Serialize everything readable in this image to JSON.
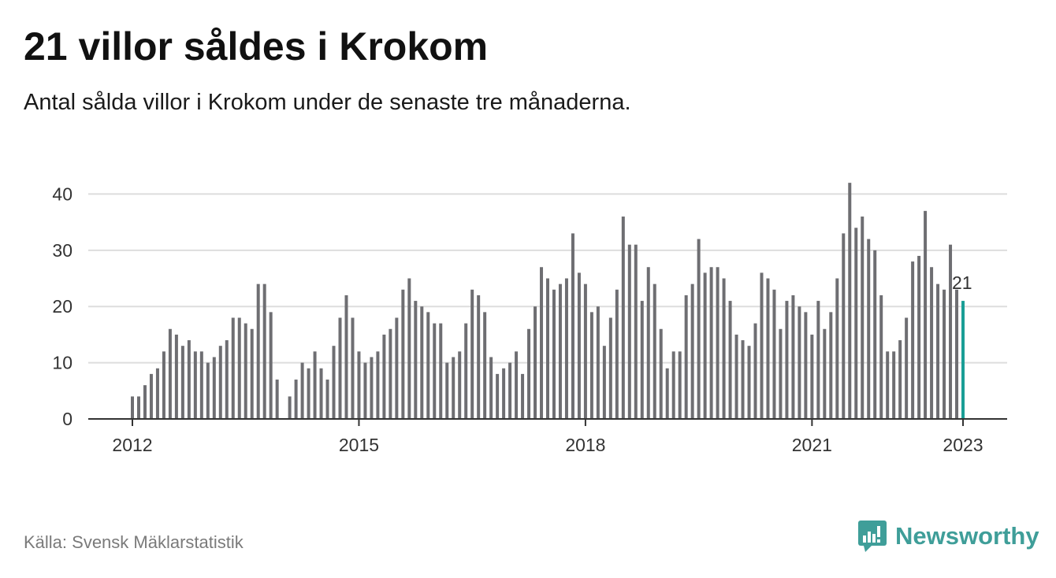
{
  "title": "21 villor såldes i Krokom",
  "subtitle": "Antal sålda villor i Krokom under de senaste tre månaderna.",
  "source": "Källa: Svensk Mäklarstatistik",
  "brand": {
    "name": "Newsworthy",
    "icon": "newsworthy-logo-icon",
    "color": "#3f9e99"
  },
  "colors": {
    "bar": "#6e6e72",
    "highlight": "#1a9e96",
    "grid": "#dddddd",
    "axis": "#333333"
  },
  "chart_data": {
    "type": "bar",
    "x_start": "2012-01",
    "x_end": "2023-01",
    "ylim": [
      0,
      43
    ],
    "yticks": [
      0,
      10,
      20,
      30,
      40
    ],
    "xticks": [
      "2012",
      "2015",
      "2018",
      "2021",
      "2023"
    ],
    "grid": true,
    "highlight_label": "21",
    "values": [
      4,
      4,
      6,
      8,
      9,
      12,
      16,
      15,
      13,
      14,
      12,
      12,
      10,
      11,
      13,
      14,
      18,
      18,
      17,
      16,
      24,
      24,
      19,
      7,
      null,
      4,
      7,
      10,
      9,
      12,
      9,
      7,
      13,
      18,
      22,
      18,
      12,
      10,
      11,
      12,
      15,
      16,
      18,
      23,
      25,
      21,
      20,
      19,
      17,
      17,
      10,
      11,
      12,
      17,
      23,
      22,
      19,
      11,
      8,
      9,
      10,
      12,
      8,
      16,
      20,
      27,
      25,
      23,
      24,
      25,
      33,
      26,
      24,
      19,
      20,
      13,
      18,
      23,
      36,
      31,
      31,
      21,
      27,
      24,
      16,
      9,
      12,
      12,
      22,
      24,
      32,
      26,
      27,
      27,
      25,
      21,
      15,
      14,
      13,
      17,
      26,
      25,
      23,
      16,
      21,
      22,
      20,
      19,
      15,
      21,
      16,
      19,
      25,
      33,
      42,
      34,
      36,
      32,
      30,
      22,
      12,
      12,
      14,
      18,
      28,
      29,
      37,
      27,
      24,
      23,
      31,
      23,
      21
    ]
  }
}
